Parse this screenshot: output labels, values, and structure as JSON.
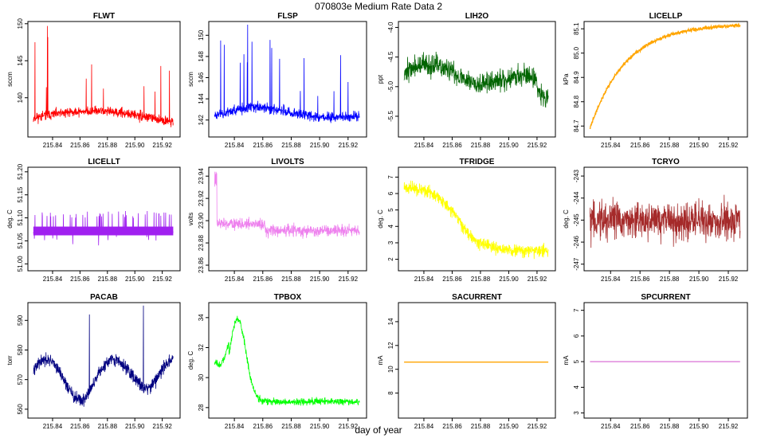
{
  "figure": {
    "title": "070803e   Medium Rate Data 2",
    "xlabel": "day of year"
  },
  "chart_data": [
    {
      "type": "line",
      "title": "FLWT",
      "ylabel": "sccm",
      "color": "#ff0000",
      "xlim": [
        215.822,
        215.933
      ],
      "ylim": [
        134.7,
        150.3
      ],
      "yticks": [
        140,
        145,
        150
      ],
      "y_tick_labels": [
        "140",
        "145",
        "150"
      ],
      "xticks": [
        215.84,
        215.86,
        215.88,
        215.9,
        215.92
      ],
      "x_tick_labels": [
        "215.84",
        "215.86",
        "215.88",
        "215.90",
        "215.92"
      ],
      "x_range": [
        215.826,
        215.928
      ],
      "kind": "flwt",
      "base": 137.4,
      "noise": 0.6,
      "seed": 11
    },
    {
      "type": "line",
      "title": "FLSP",
      "ylabel": "sccm",
      "color": "#0000ff",
      "xlim": [
        215.822,
        215.933
      ],
      "ylim": [
        140.4,
        151.3
      ],
      "yticks": [
        142,
        144,
        146,
        148,
        150
      ],
      "y_tick_labels": [
        "142",
        "144",
        "146",
        "148",
        "150"
      ],
      "xticks": [
        215.84,
        215.86,
        215.88,
        215.9,
        215.92
      ],
      "x_tick_labels": [
        "215.84",
        "215.86",
        "215.88",
        "215.90",
        "215.92"
      ],
      "x_range": [
        215.826,
        215.928
      ],
      "kind": "flsp",
      "base": 142.6,
      "noise": 0.45,
      "seed": 23
    },
    {
      "type": "line",
      "title": "LIH2O",
      "ylabel": "ppt",
      "color": "#006400",
      "xlim": [
        215.822,
        215.933
      ],
      "ylim": [
        -5.85,
        -3.9
      ],
      "yticks": [
        -5.5,
        -5.0,
        -4.5,
        -4.0
      ],
      "y_tick_labels": [
        "-5.5",
        "-5.0",
        "-4.5",
        "-4.0"
      ],
      "xticks": [
        215.84,
        215.86,
        215.88,
        215.9,
        215.92
      ],
      "x_tick_labels": [
        "215.84",
        "215.86",
        "215.88",
        "215.90",
        "215.92"
      ],
      "x_range": [
        215.826,
        215.928
      ],
      "kind": "lih2o",
      "base": -4.75,
      "noise": 0.17,
      "seed": 37
    },
    {
      "type": "line",
      "title": "LICELLP",
      "ylabel": "kPa",
      "color": "#ffa500",
      "xlim": [
        215.822,
        215.933
      ],
      "ylim": [
        84.655,
        85.13
      ],
      "yticks": [
        84.7,
        84.8,
        84.9,
        85.0,
        85.1
      ],
      "y_tick_labels": [
        "84.7",
        "84.8",
        "84.9",
        "85.0",
        "85.1"
      ],
      "xticks": [
        215.84,
        215.86,
        215.88,
        215.9,
        215.92
      ],
      "x_tick_labels": [
        "215.84",
        "215.86",
        "215.88",
        "215.90",
        "215.92"
      ],
      "x_range": [
        215.826,
        215.928
      ],
      "kind": "licellp",
      "base": 84.69,
      "noise": 0.006,
      "seed": 41
    },
    {
      "type": "line",
      "title": "LICELLT",
      "ylabel": "deg. C",
      "color": "#a020f0",
      "xlim": [
        215.822,
        215.933
      ],
      "ylim": [
        50.985,
        51.21
      ],
      "yticks": [
        51.0,
        51.05,
        51.1,
        51.15,
        51.2
      ],
      "y_tick_labels": [
        "51.00",
        "51.05",
        "51.10",
        "51.15",
        "51.20"
      ],
      "xticks": [
        215.84,
        215.86,
        215.88,
        215.9,
        215.92
      ],
      "x_tick_labels": [
        "215.84",
        "215.86",
        "215.88",
        "215.90",
        "215.92"
      ],
      "x_range": [
        215.826,
        215.928
      ],
      "kind": "licellt",
      "base": 51.07,
      "noise": 0.011,
      "seed": 53
    },
    {
      "type": "line",
      "title": "LIVOLTS",
      "ylabel": "volts",
      "color": "#ee82ee",
      "xlim": [
        215.822,
        215.933
      ],
      "ylim": [
        23.855,
        23.948
      ],
      "yticks": [
        23.86,
        23.88,
        23.9,
        23.92,
        23.94
      ],
      "y_tick_labels": [
        "23.86",
        "23.88",
        "23.90",
        "23.92",
        "23.94"
      ],
      "xticks": [
        215.84,
        215.86,
        215.88,
        215.9,
        215.92
      ],
      "x_tick_labels": [
        "215.84",
        "215.86",
        "215.88",
        "215.90",
        "215.92"
      ],
      "x_range": [
        215.826,
        215.928
      ],
      "kind": "livolts",
      "base": 23.895,
      "noise": 0.005,
      "seed": 61
    },
    {
      "type": "line",
      "title": "TFRIDGE",
      "ylabel": "deg. C",
      "color": "#ffff00",
      "xlim": [
        215.822,
        215.933
      ],
      "ylim": [
        1.3,
        7.6
      ],
      "yticks": [
        2,
        3,
        4,
        5,
        6,
        7
      ],
      "y_tick_labels": [
        "2",
        "3",
        "4",
        "5",
        "6",
        "7"
      ],
      "xticks": [
        215.84,
        215.86,
        215.88,
        215.9,
        215.92
      ],
      "x_tick_labels": [
        "215.84",
        "215.86",
        "215.88",
        "215.90",
        "215.92"
      ],
      "x_range": [
        215.826,
        215.928
      ],
      "kind": "tfridge",
      "base": 6.3,
      "noise": 0.35,
      "seed": 71
    },
    {
      "type": "line",
      "title": "TCRYO",
      "ylabel": "deg. C",
      "color": "#a52a2a",
      "xlim": [
        215.822,
        215.933
      ],
      "ylim": [
        -247.3,
        -242.6
      ],
      "yticks": [
        -247,
        -246,
        -245,
        -244,
        -243
      ],
      "y_tick_labels": [
        "-247",
        "-246",
        "-245",
        "-244",
        "-243"
      ],
      "xticks": [
        215.84,
        215.86,
        215.88,
        215.9,
        215.92
      ],
      "x_tick_labels": [
        "215.84",
        "215.86",
        "215.88",
        "215.90",
        "215.92"
      ],
      "x_range": [
        215.826,
        215.928
      ],
      "kind": "tcryo",
      "base": -245.0,
      "noise": 0.7,
      "seed": 83
    },
    {
      "type": "line",
      "title": "PACAB",
      "ylabel": "torr",
      "color": "#000080",
      "xlim": [
        215.822,
        215.933
      ],
      "ylim": [
        557,
        596
      ],
      "yticks": [
        560,
        570,
        580,
        590
      ],
      "y_tick_labels": [
        "560",
        "570",
        "580",
        "590"
      ],
      "xticks": [
        215.84,
        215.86,
        215.88,
        215.9,
        215.92
      ],
      "x_tick_labels": [
        "215.84",
        "215.86",
        "215.88",
        "215.90",
        "215.92"
      ],
      "x_range": [
        215.826,
        215.928
      ],
      "kind": "pacab",
      "base": 574,
      "noise": 2.0,
      "seed": 97
    },
    {
      "type": "line",
      "title": "TPBOX",
      "ylabel": "deg. C",
      "color": "#00ff00",
      "xlim": [
        215.822,
        215.933
      ],
      "ylim": [
        27.3,
        35.0
      ],
      "yticks": [
        28,
        30,
        32,
        34
      ],
      "y_tick_labels": [
        "28",
        "30",
        "32",
        "34"
      ],
      "xticks": [
        215.84,
        215.86,
        215.88,
        215.9,
        215.92
      ],
      "x_tick_labels": [
        "215.84",
        "215.86",
        "215.88",
        "215.90",
        "215.92"
      ],
      "x_range": [
        215.826,
        215.928
      ],
      "kind": "tpbox",
      "base": 31.0,
      "noise": 0.22,
      "seed": 103
    },
    {
      "type": "line",
      "title": "SACURRENT",
      "ylabel": "mA",
      "color": "#ffa500",
      "xlim": [
        215.822,
        215.933
      ],
      "ylim": [
        5.9,
        15.6
      ],
      "yticks": [
        8,
        10,
        12,
        14
      ],
      "y_tick_labels": [
        "8",
        "10",
        "12",
        "14"
      ],
      "xticks": [
        215.84,
        215.86,
        215.88,
        215.9,
        215.92
      ],
      "x_tick_labels": [
        "215.84",
        "215.86",
        "215.88",
        "215.90",
        "215.92"
      ],
      "x_range": [
        215.826,
        215.928
      ],
      "kind": "const",
      "base": 10.6,
      "noise": 0,
      "seed": 1
    },
    {
      "type": "line",
      "title": "SPCURRENT",
      "ylabel": "mA",
      "color": "#da70d6",
      "xlim": [
        215.822,
        215.933
      ],
      "ylim": [
        2.8,
        7.3
      ],
      "yticks": [
        3,
        4,
        5,
        6,
        7
      ],
      "y_tick_labels": [
        "3",
        "4",
        "5",
        "6",
        "7"
      ],
      "xticks": [
        215.84,
        215.86,
        215.88,
        215.9,
        215.92
      ],
      "x_tick_labels": [
        "215.84",
        "215.86",
        "215.88",
        "215.90",
        "215.92"
      ],
      "x_range": [
        215.826,
        215.928
      ],
      "kind": "const",
      "base": 5.0,
      "noise": 0,
      "seed": 2
    }
  ]
}
